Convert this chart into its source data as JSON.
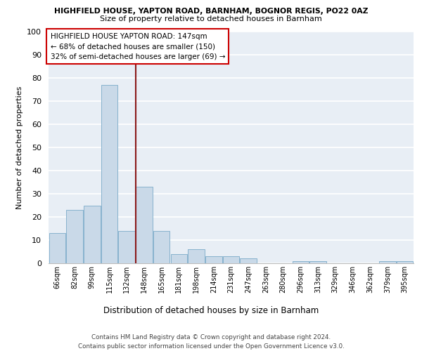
{
  "title1": "HIGHFIELD HOUSE, YAPTON ROAD, BARNHAM, BOGNOR REGIS, PO22 0AZ",
  "title2": "Size of property relative to detached houses in Barnham",
  "xlabel": "Distribution of detached houses by size in Barnham",
  "ylabel": "Number of detached properties",
  "bin_labels": [
    "66sqm",
    "82sqm",
    "99sqm",
    "115sqm",
    "132sqm",
    "148sqm",
    "165sqm",
    "181sqm",
    "198sqm",
    "214sqm",
    "231sqm",
    "247sqm",
    "263sqm",
    "280sqm",
    "296sqm",
    "313sqm",
    "329sqm",
    "346sqm",
    "362sqm",
    "379sqm",
    "395sqm"
  ],
  "bar_values": [
    13,
    23,
    25,
    77,
    14,
    33,
    14,
    4,
    6,
    3,
    3,
    2,
    0,
    0,
    1,
    1,
    0,
    0,
    0,
    1,
    1
  ],
  "bar_color": "#c9d9e8",
  "bar_edgecolor": "#7aaac8",
  "marker_label": "HIGHFIELD HOUSE YAPTON ROAD: 147sqm",
  "annotation_line1": "← 68% of detached houses are smaller (150)",
  "annotation_line2": "32% of semi-detached houses are larger (69) →",
  "annotation_box_color": "#cc0000",
  "vline_color": "#8b1a1a",
  "vline_x": 4.5,
  "ylim": [
    0,
    100
  ],
  "yticks": [
    0,
    10,
    20,
    30,
    40,
    50,
    60,
    70,
    80,
    90,
    100
  ],
  "footer": "Contains HM Land Registry data © Crown copyright and database right 2024.\nContains public sector information licensed under the Open Government Licence v3.0.",
  "bg_color": "#e8eef5",
  "grid_color": "#ffffff"
}
